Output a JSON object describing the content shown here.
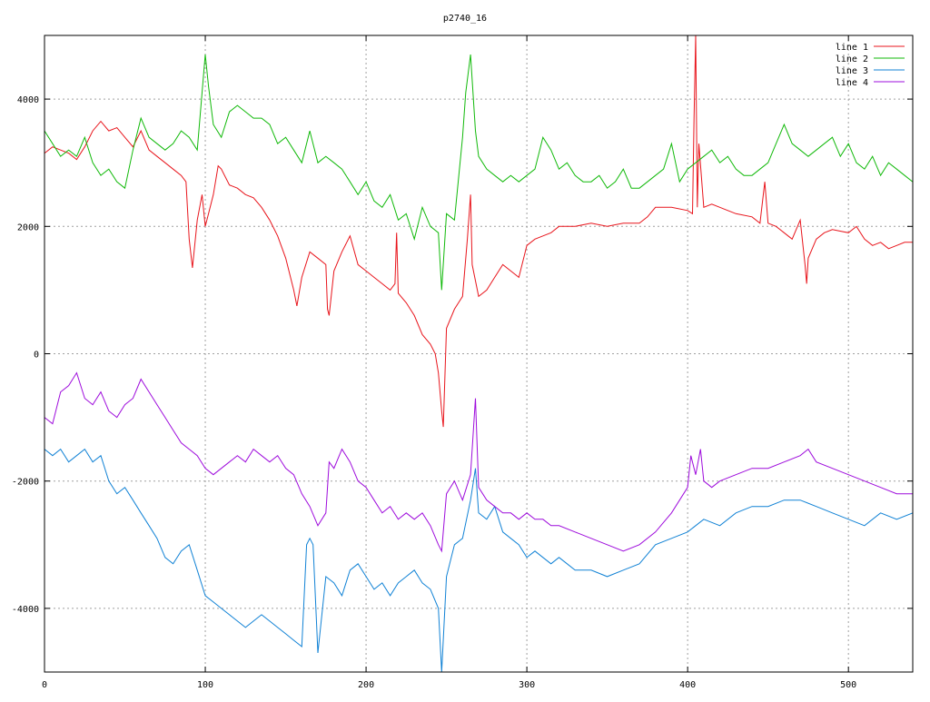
{
  "chart_data": {
    "type": "line",
    "title": "p2740_16",
    "xlabel": "",
    "ylabel": "",
    "xlim": [
      0,
      540
    ],
    "ylim": [
      -5000,
      5000
    ],
    "grid": true,
    "legend_position": "top-right",
    "xticks": [
      0,
      100,
      200,
      300,
      400,
      500
    ],
    "xtick_labels": [
      "0",
      "100",
      "200",
      "300",
      "400",
      "500"
    ],
    "yticks": [
      -4000,
      -2000,
      0,
      2000,
      4000
    ],
    "ytick_labels": [
      "-4000",
      "-2000",
      "0",
      "2000",
      "4000"
    ],
    "series": [
      {
        "name": "line 1",
        "color": "#e8151c",
        "x": [
          0,
          5,
          10,
          15,
          20,
          25,
          30,
          35,
          40,
          45,
          50,
          55,
          60,
          65,
          70,
          75,
          80,
          85,
          88,
          90,
          92,
          95,
          98,
          100,
          102,
          105,
          108,
          110,
          115,
          120,
          125,
          130,
          135,
          140,
          145,
          150,
          155,
          157,
          160,
          165,
          170,
          175,
          176,
          177,
          180,
          185,
          190,
          195,
          200,
          205,
          210,
          215,
          218,
          219,
          220,
          225,
          230,
          235,
          240,
          243,
          245,
          247,
          248,
          250,
          255,
          260,
          263,
          265,
          266,
          270,
          275,
          280,
          285,
          290,
          295,
          300,
          305,
          310,
          315,
          320,
          330,
          340,
          350,
          360,
          370,
          375,
          380,
          390,
          400,
          403,
          404,
          405,
          406,
          407,
          410,
          415,
          420,
          425,
          430,
          440,
          445,
          448,
          450,
          455,
          460,
          465,
          470,
          473,
          474,
          475,
          480,
          485,
          490,
          500,
          505,
          510,
          515,
          520,
          525,
          530,
          535,
          540
        ],
        "y": [
          3150,
          3250,
          3200,
          3150,
          3050,
          3250,
          3500,
          3650,
          3500,
          3550,
          3400,
          3250,
          3500,
          3200,
          3100,
          3000,
          2900,
          2800,
          2700,
          1800,
          1350,
          2100,
          2500,
          2000,
          2200,
          2500,
          2950,
          2900,
          2650,
          2600,
          2500,
          2450,
          2300,
          2100,
          1850,
          1500,
          1000,
          750,
          1200,
          1600,
          1500,
          1400,
          700,
          600,
          1300,
          1600,
          1850,
          1400,
          1300,
          1200,
          1100,
          1000,
          1100,
          1900,
          950,
          800,
          600,
          300,
          150,
          0,
          -300,
          -900,
          -1150,
          400,
          700,
          900,
          1800,
          2500,
          1400,
          900,
          1000,
          1200,
          1400,
          1300,
          1200,
          1700,
          1800,
          1850,
          1900,
          2000,
          2000,
          2050,
          2000,
          2050,
          2050,
          2150,
          2300,
          2300,
          2250,
          2200,
          3700,
          5000,
          2300,
          3300,
          2300,
          2350,
          2300,
          2250,
          2200,
          2150,
          2050,
          2700,
          2050,
          2000,
          1900,
          1800,
          2100,
          1400,
          1100,
          1500,
          1800,
          1900,
          1950,
          1900,
          2000,
          1800,
          1700,
          1750,
          1650,
          1700,
          1750,
          1750
        ]
      },
      {
        "name": "line 2",
        "color": "#11b90a",
        "x": [
          0,
          5,
          10,
          15,
          20,
          25,
          30,
          35,
          40,
          45,
          50,
          55,
          60,
          65,
          70,
          75,
          80,
          85,
          90,
          95,
          100,
          102,
          105,
          110,
          115,
          120,
          125,
          130,
          135,
          140,
          145,
          150,
          155,
          160,
          165,
          170,
          175,
          180,
          185,
          190,
          195,
          200,
          205,
          210,
          215,
          220,
          225,
          230,
          235,
          240,
          245,
          247,
          250,
          255,
          260,
          262,
          265,
          268,
          270,
          275,
          280,
          285,
          290,
          295,
          300,
          305,
          310,
          315,
          320,
          325,
          330,
          335,
          340,
          345,
          350,
          355,
          360,
          365,
          370,
          375,
          380,
          385,
          390,
          395,
          400,
          405,
          410,
          415,
          420,
          425,
          430,
          435,
          440,
          445,
          450,
          455,
          460,
          465,
          470,
          475,
          480,
          485,
          490,
          495,
          500,
          505,
          510,
          515,
          520,
          525,
          530,
          535,
          540
        ],
        "y": [
          3500,
          3300,
          3100,
          3200,
          3100,
          3400,
          3000,
          2800,
          2900,
          2700,
          2600,
          3200,
          3700,
          3400,
          3300,
          3200,
          3300,
          3500,
          3400,
          3200,
          4700,
          4200,
          3600,
          3400,
          3800,
          3900,
          3800,
          3700,
          3700,
          3600,
          3300,
          3400,
          3200,
          3000,
          3500,
          3000,
          3100,
          3000,
          2900,
          2700,
          2500,
          2700,
          2400,
          2300,
          2500,
          2100,
          2200,
          1800,
          2300,
          2000,
          1900,
          1000,
          2200,
          2100,
          3400,
          4100,
          4700,
          3500,
          3100,
          2900,
          2800,
          2700,
          2800,
          2700,
          2800,
          2900,
          3400,
          3200,
          2900,
          3000,
          2800,
          2700,
          2700,
          2800,
          2600,
          2700,
          2900,
          2600,
          2600,
          2700,
          2800,
          2900,
          3300,
          2700,
          2900,
          3000,
          3100,
          3200,
          3000,
          3100,
          2900,
          2800,
          2800,
          2900,
          3000,
          3300,
          3600,
          3300,
          3200,
          3100,
          3200,
          3300,
          3400,
          3100,
          3300,
          3000,
          2900,
          3100,
          2800,
          3000,
          2900,
          2800,
          2700
        ]
      },
      {
        "name": "line 3",
        "color": "#1182d5",
        "x": [
          0,
          5,
          10,
          15,
          20,
          25,
          30,
          35,
          40,
          45,
          50,
          55,
          60,
          65,
          70,
          75,
          80,
          85,
          90,
          95,
          100,
          105,
          110,
          115,
          120,
          125,
          130,
          135,
          140,
          145,
          150,
          155,
          160,
          163,
          165,
          167,
          170,
          175,
          180,
          185,
          190,
          195,
          200,
          205,
          210,
          215,
          220,
          225,
          230,
          235,
          240,
          245,
          247,
          250,
          255,
          260,
          265,
          268,
          270,
          275,
          280,
          285,
          290,
          295,
          300,
          305,
          310,
          315,
          320,
          325,
          330,
          340,
          350,
          360,
          370,
          380,
          390,
          400,
          410,
          420,
          430,
          440,
          450,
          460,
          470,
          480,
          490,
          500,
          510,
          520,
          530,
          540
        ],
        "y": [
          -1500,
          -1600,
          -1500,
          -1700,
          -1600,
          -1500,
          -1700,
          -1600,
          -2000,
          -2200,
          -2100,
          -2300,
          -2500,
          -2700,
          -2900,
          -3200,
          -3300,
          -3100,
          -3000,
          -3400,
          -3800,
          -3900,
          -4000,
          -4100,
          -4200,
          -4300,
          -4200,
          -4100,
          -4200,
          -4300,
          -4400,
          -4500,
          -4600,
          -3000,
          -2900,
          -3000,
          -4700,
          -3500,
          -3600,
          -3800,
          -3400,
          -3300,
          -3500,
          -3700,
          -3600,
          -3800,
          -3600,
          -3500,
          -3400,
          -3600,
          -3700,
          -4000,
          -5000,
          -3500,
          -3000,
          -2900,
          -2300,
          -1800,
          -2500,
          -2600,
          -2400,
          -2800,
          -2900,
          -3000,
          -3200,
          -3100,
          -3200,
          -3300,
          -3200,
          -3300,
          -3400,
          -3400,
          -3500,
          -3400,
          -3300,
          -3000,
          -2900,
          -2800,
          -2600,
          -2700,
          -2500,
          -2400,
          -2400,
          -2300,
          -2300,
          -2400,
          -2500,
          -2600,
          -2700,
          -2500,
          -2600,
          -2500
        ]
      },
      {
        "name": "line 4",
        "color": "#9e0cdc",
        "x": [
          0,
          5,
          10,
          15,
          20,
          25,
          30,
          35,
          40,
          45,
          50,
          55,
          60,
          65,
          70,
          75,
          80,
          85,
          90,
          95,
          100,
          105,
          110,
          115,
          120,
          125,
          130,
          135,
          140,
          145,
          150,
          155,
          160,
          165,
          170,
          175,
          177,
          180,
          185,
          190,
          195,
          200,
          205,
          210,
          215,
          220,
          225,
          230,
          235,
          240,
          245,
          247,
          250,
          255,
          260,
          265,
          268,
          270,
          275,
          280,
          285,
          290,
          295,
          300,
          305,
          310,
          315,
          320,
          330,
          340,
          350,
          360,
          370,
          380,
          390,
          400,
          402,
          405,
          408,
          410,
          415,
          420,
          430,
          440,
          450,
          460,
          470,
          475,
          480,
          490,
          500,
          510,
          520,
          530,
          540
        ],
        "y": [
          -1000,
          -1100,
          -600,
          -500,
          -300,
          -700,
          -800,
          -600,
          -900,
          -1000,
          -800,
          -700,
          -400,
          -600,
          -800,
          -1000,
          -1200,
          -1400,
          -1500,
          -1600,
          -1800,
          -1900,
          -1800,
          -1700,
          -1600,
          -1700,
          -1500,
          -1600,
          -1700,
          -1600,
          -1800,
          -1900,
          -2200,
          -2400,
          -2700,
          -2500,
          -1700,
          -1800,
          -1500,
          -1700,
          -2000,
          -2100,
          -2300,
          -2500,
          -2400,
          -2600,
          -2500,
          -2600,
          -2500,
          -2700,
          -3000,
          -3100,
          -2200,
          -2000,
          -2300,
          -1900,
          -700,
          -2100,
          -2300,
          -2400,
          -2500,
          -2500,
          -2600,
          -2500,
          -2600,
          -2600,
          -2700,
          -2700,
          -2800,
          -2900,
          -3000,
          -3100,
          -3000,
          -2800,
          -2500,
          -2100,
          -1600,
          -1900,
          -1500,
          -2000,
          -2100,
          -2000,
          -1900,
          -1800,
          -1800,
          -1700,
          -1600,
          -1500,
          -1700,
          -1800,
          -1900,
          -2000,
          -2100,
          -2200,
          -2200
        ]
      }
    ]
  }
}
